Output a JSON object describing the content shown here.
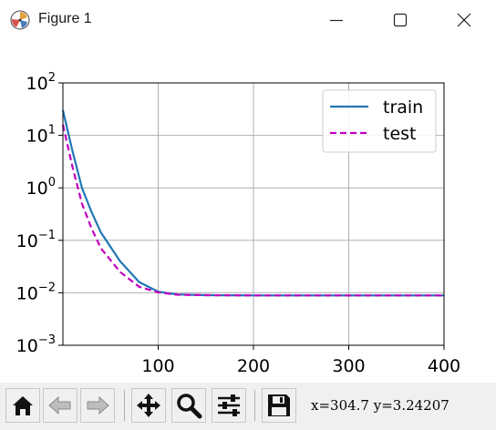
{
  "window": {
    "title": "Figure 1",
    "app_icon": "matplotlib-icon",
    "controls": [
      "minimize-icon",
      "maximize-icon",
      "close-icon"
    ]
  },
  "toolbar": {
    "buttons": [
      "home-icon",
      "back-arrow-icon",
      "forward-arrow-icon",
      "pan-icon",
      "zoom-icon",
      "configure-subplots-icon",
      "save-icon"
    ],
    "coords_text": "x=304.7  y=3.24207"
  },
  "chart_data": {
    "type": "line",
    "title": "",
    "xlabel": "",
    "ylabel": "",
    "xlim": [
      0,
      400
    ],
    "ylim": [
      0.001,
      100
    ],
    "yscale": "log",
    "grid": true,
    "legend_position": "upper-right",
    "x_ticks": [
      {
        "value": 100,
        "label": "100"
      },
      {
        "value": 200,
        "label": "200"
      },
      {
        "value": 300,
        "label": "300"
      },
      {
        "value": 400,
        "label": "400"
      }
    ],
    "y_ticks": [
      {
        "value": 0.001,
        "base": "10",
        "exp": "−3"
      },
      {
        "value": 0.01,
        "base": "10",
        "exp": "−2"
      },
      {
        "value": 0.1,
        "base": "10",
        "exp": "−1"
      },
      {
        "value": 1,
        "base": "10",
        "exp": "0"
      },
      {
        "value": 10,
        "base": "10",
        "exp": "1"
      },
      {
        "value": 100,
        "base": "10",
        "exp": "2"
      }
    ],
    "series": [
      {
        "name": "train",
        "color": "#1f77b4",
        "style": "solid",
        "x": [
          0,
          10,
          20,
          30,
          40,
          60,
          80,
          100,
          120,
          150,
          200,
          250,
          300,
          350,
          400
        ],
        "y": [
          30,
          5,
          1.0,
          0.35,
          0.14,
          0.04,
          0.016,
          0.0105,
          0.0093,
          0.009,
          0.0089,
          0.0089,
          0.0089,
          0.0089,
          0.0089
        ]
      },
      {
        "name": "test",
        "color": "#bf00bf",
        "style": "dashed",
        "x": [
          0,
          10,
          20,
          30,
          40,
          60,
          80,
          100,
          120,
          150,
          200,
          250,
          300,
          350,
          400
        ],
        "y": [
          16,
          2.5,
          0.5,
          0.17,
          0.07,
          0.025,
          0.013,
          0.0102,
          0.0092,
          0.009,
          0.0089,
          0.0089,
          0.0089,
          0.0089,
          0.0089
        ]
      }
    ]
  }
}
